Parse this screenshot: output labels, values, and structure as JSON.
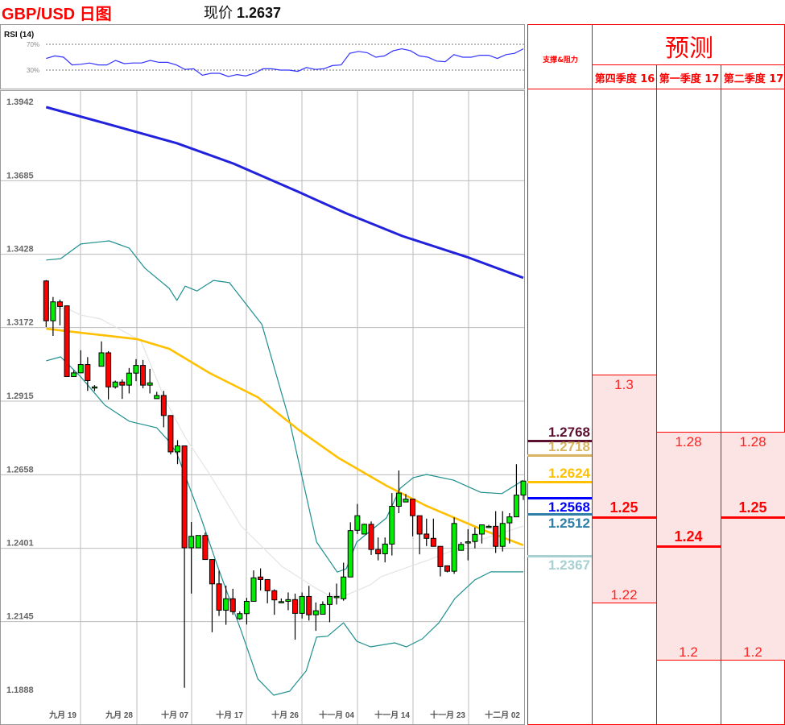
{
  "header": {
    "title": "GBP/USD 日图",
    "price_label": "现价",
    "price_value": "1.2637"
  },
  "colors": {
    "bull": "#00ee00",
    "bear": "#ff0000",
    "ma_long": "#2222dd",
    "ma_short": "#ffc000",
    "bollinger": "#1f8f8f",
    "bollinger_mid": "#e4e4e4",
    "rsi": "#3333ff",
    "panel_border": "#ff0000",
    "forecast_fill": "#fde4e4"
  },
  "rsi": {
    "label": "RSI (14)",
    "level_high": "70%",
    "level_low": "30%",
    "values": [
      48,
      52,
      50,
      38,
      39,
      41,
      38,
      38,
      45,
      40,
      41,
      41,
      45,
      42,
      42,
      38,
      31,
      32,
      22,
      25,
      25,
      20,
      23,
      21,
      25,
      32,
      32,
      30,
      30,
      28,
      34,
      31,
      32,
      37,
      38,
      56,
      59,
      57,
      50,
      52,
      60,
      63,
      60,
      52,
      50,
      44,
      43,
      54,
      50,
      50,
      53,
      53,
      48,
      54,
      56,
      63
    ]
  },
  "chart_data": {
    "type": "candlestick",
    "title": "GBP/USD 日图",
    "y_ticks": [
      "1.3942",
      "1.3685",
      "1.3428",
      "1.3172",
      "1.2915",
      "1.2658",
      "1.2401",
      "1.2145",
      "1.1888"
    ],
    "ylim": [
      1.1888,
      1.3942
    ],
    "x_tick_labels": [
      "九月 19",
      "九月 28",
      "十月 07",
      "十月 17",
      "十月 26",
      "十一月 04",
      "十一月 14",
      "十一月 23",
      "十二月 02"
    ],
    "grid": true,
    "ohlc": [
      [
        1.3318,
        1.3321,
        1.3157,
        1.3179
      ],
      [
        1.3179,
        1.3262,
        1.3126,
        1.3245
      ],
      [
        1.3245,
        1.3253,
        1.3163,
        1.3229
      ],
      [
        1.3231,
        1.3231,
        1.2984,
        1.2984
      ],
      [
        1.2984,
        1.3006,
        1.2984,
        1.2997
      ],
      [
        1.2997,
        1.3076,
        1.2997,
        1.3026
      ],
      [
        1.3026,
        1.3052,
        1.2934,
        1.297
      ],
      [
        1.2948,
        1.2954,
        1.2933,
        1.2948
      ],
      [
        1.302,
        1.3107,
        1.302,
        1.3067
      ],
      [
        1.3067,
        1.3073,
        1.2904,
        1.2948
      ],
      [
        1.2948,
        1.297,
        1.2942,
        1.2965
      ],
      [
        1.2965,
        1.2974,
        1.2906,
        1.2954
      ],
      [
        1.2954,
        1.3014,
        1.2925,
        1.2996
      ],
      [
        1.2996,
        1.3045,
        1.2968,
        1.3023
      ],
      [
        1.3023,
        1.3042,
        1.2943,
        1.2954
      ],
      [
        1.2954,
        1.3011,
        1.2925,
        1.2962
      ],
      [
        1.2907,
        1.2931,
        1.2907,
        1.2918
      ],
      [
        1.2918,
        1.2934,
        1.2807,
        1.2848
      ],
      [
        1.2848,
        1.2848,
        1.2712,
        1.2721
      ],
      [
        1.2721,
        1.2762,
        1.2678,
        1.2742
      ],
      [
        1.2742,
        1.2742,
        1.1897,
        1.2386
      ],
      [
        1.2386,
        1.2476,
        1.2226,
        1.2426
      ],
      [
        1.2386,
        1.2429,
        1.2386,
        1.2429
      ],
      [
        1.2429,
        1.2439,
        1.2345,
        1.2345
      ],
      [
        1.2345,
        1.2345,
        1.2091,
        1.226
      ],
      [
        1.226,
        1.2306,
        1.2148,
        1.2168
      ],
      [
        1.2168,
        1.2254,
        1.2117,
        1.2208
      ],
      [
        1.2208,
        1.2243,
        1.2152,
        1.2163
      ],
      [
        1.2138,
        1.2164,
        1.2134,
        1.2156
      ],
      [
        1.2156,
        1.2211,
        1.2118,
        1.2199
      ],
      [
        1.2199,
        1.2307,
        1.2199,
        1.2281
      ],
      [
        1.2284,
        1.2314,
        1.2237,
        1.2275
      ],
      [
        1.2275,
        1.2275,
        1.2192,
        1.2236
      ],
      [
        1.2236,
        1.2241,
        1.2152,
        1.2204
      ],
      [
        1.2198,
        1.2209,
        1.2195,
        1.2198
      ],
      [
        1.2199,
        1.223,
        1.2168,
        1.2205
      ],
      [
        1.2205,
        1.2226,
        1.2065,
        1.2157
      ],
      [
        1.2157,
        1.223,
        1.2139,
        1.2216
      ],
      [
        1.2216,
        1.2253,
        1.2132,
        1.2152
      ],
      [
        1.2152,
        1.2195,
        1.2096,
        1.2166
      ],
      [
        1.2154,
        1.2199,
        1.2154,
        1.2188
      ],
      [
        1.2188,
        1.223,
        1.2126,
        1.2216
      ],
      [
        1.2216,
        1.2261,
        1.2188,
        1.2216
      ],
      [
        1.2208,
        1.2334,
        1.2201,
        1.2284
      ],
      [
        1.2284,
        1.2475,
        1.2284,
        1.2446
      ],
      [
        1.2447,
        1.2539,
        1.2434,
        1.2498
      ],
      [
        1.2434,
        1.247,
        1.2434,
        1.2468
      ],
      [
        1.2468,
        1.2478,
        1.2361,
        1.238
      ],
      [
        1.238,
        1.2422,
        1.2342,
        1.2365
      ],
      [
        1.2365,
        1.2422,
        1.2335,
        1.2399
      ],
      [
        1.2399,
        1.2577,
        1.2359,
        1.2531
      ],
      [
        1.2531,
        1.2656,
        1.2507,
        1.2577
      ],
      [
        1.2546,
        1.2574,
        1.2546,
        1.2556
      ],
      [
        1.2556,
        1.2556,
        1.2426,
        1.2498
      ],
      [
        1.2498,
        1.2498,
        1.2363,
        1.2434
      ],
      [
        1.2434,
        1.2488,
        1.2392,
        1.2419
      ],
      [
        1.2419,
        1.2488,
        1.239,
        1.2391
      ],
      [
        1.2391,
        1.2391,
        1.2286,
        1.232
      ],
      [
        1.2323,
        1.2323,
        1.23,
        1.2304
      ],
      [
        1.2304,
        1.2492,
        1.2295,
        1.2471
      ],
      [
        1.2377,
        1.2406,
        1.2377,
        1.2398
      ],
      [
        1.2407,
        1.2451,
        1.2342,
        1.2407
      ],
      [
        1.2408,
        1.2457,
        1.2384,
        1.2433
      ],
      [
        1.2434,
        1.2466,
        1.2401,
        1.2466
      ],
      [
        1.2461,
        1.2466,
        1.2455,
        1.2461
      ],
      [
        1.2461,
        1.2514,
        1.2368,
        1.2391
      ],
      [
        1.2391,
        1.2514,
        1.2373,
        1.2471
      ],
      [
        1.2473,
        1.2507,
        1.2401,
        1.2494
      ],
      [
        1.2494,
        1.2678,
        1.2494,
        1.257
      ],
      [
        1.257,
        1.2619,
        1.2553,
        1.2619
      ]
    ],
    "indicators": {
      "ma_long": [
        [
          0,
          1.3925
        ],
        [
          8.5,
          1.3869
        ],
        [
          18.9,
          1.3799
        ],
        [
          27.1,
          1.3728
        ],
        [
          36.4,
          1.363
        ],
        [
          43.4,
          1.3554
        ],
        [
          51.5,
          1.3475
        ],
        [
          60.8,
          1.3402
        ],
        [
          69,
          1.3329
        ]
      ],
      "ma_short": [
        [
          0,
          1.3151
        ],
        [
          5,
          1.3137
        ],
        [
          13.1,
          1.3115
        ],
        [
          17.8,
          1.3081
        ],
        [
          23.6,
          1.2997
        ],
        [
          30.6,
          1.2912
        ],
        [
          36.4,
          1.28
        ],
        [
          42.2,
          1.2701
        ],
        [
          49.2,
          1.2603
        ],
        [
          55,
          1.2532
        ],
        [
          63.2,
          1.2448
        ],
        [
          69,
          1.2395
        ]
      ],
      "bollinger_upper": [
        [
          0,
          1.3391
        ],
        [
          2.1,
          1.3396
        ],
        [
          5,
          1.3447
        ],
        [
          9.1,
          1.3458
        ],
        [
          12,
          1.3433
        ],
        [
          14.3,
          1.3362
        ],
        [
          17.8,
          1.3292
        ],
        [
          18.9,
          1.325
        ],
        [
          20.1,
          1.33
        ],
        [
          21.8,
          1.3283
        ],
        [
          24.2,
          1.332
        ],
        [
          26.5,
          1.3312
        ],
        [
          31.2,
          1.3166
        ],
        [
          35.2,
          1.2828
        ],
        [
          39.1,
          1.2406
        ],
        [
          42.1,
          1.2301
        ],
        [
          43.4,
          1.2313
        ],
        [
          44.9,
          1.2406
        ],
        [
          49.2,
          1.249
        ],
        [
          51.2,
          1.2594
        ],
        [
          53.1,
          1.2631
        ],
        [
          55,
          1.2642
        ],
        [
          58.9,
          1.2622
        ],
        [
          62.8,
          1.258
        ],
        [
          65.9,
          1.2575
        ],
        [
          69,
          1.2622
        ]
      ],
      "bollinger_mid": [
        [
          0,
          1.3222
        ],
        [
          3,
          1.3222
        ],
        [
          5,
          1.3199
        ],
        [
          7.9,
          1.3185
        ],
        [
          13.7,
          1.3109
        ],
        [
          17.2,
          1.2904
        ],
        [
          20.1,
          1.2772
        ],
        [
          23.6,
          1.2645
        ],
        [
          28.2,
          1.2462
        ],
        [
          34.1,
          1.2321
        ],
        [
          39.1,
          1.2243
        ],
        [
          40.7,
          1.2223
        ],
        [
          43,
          1.2217
        ],
        [
          46.9,
          1.2257
        ],
        [
          48.4,
          1.2285
        ],
        [
          55,
          1.2341
        ],
        [
          62.8,
          1.2414
        ],
        [
          69,
          1.2462
        ]
      ],
      "bollinger_lower": [
        [
          0,
          1.3039
        ],
        [
          2.1,
          1.3053
        ],
        [
          5,
          1.2983
        ],
        [
          8.5,
          1.2884
        ],
        [
          12,
          1.2828
        ],
        [
          16,
          1.2805
        ],
        [
          17.8,
          1.2757
        ],
        [
          18.9,
          1.2715
        ],
        [
          22.4,
          1.249
        ],
        [
          24.8,
          1.2321
        ],
        [
          28.2,
          1.2096
        ],
        [
          30.6,
          1.1928
        ],
        [
          32.9,
          1.1871
        ],
        [
          35.2,
          1.1885
        ],
        [
          37.6,
          1.1956
        ],
        [
          39.1,
          1.2074
        ],
        [
          40.7,
          1.2077
        ],
        [
          43,
          1.2124
        ],
        [
          44.9,
          1.206
        ],
        [
          46.9,
          1.204
        ],
        [
          50.4,
          1.2054
        ],
        [
          52.1,
          1.204
        ],
        [
          54.4,
          1.2068
        ],
        [
          56.8,
          1.2124
        ],
        [
          59.1,
          1.2209
        ],
        [
          62,
          1.2274
        ],
        [
          64.3,
          1.2302
        ],
        [
          69,
          1.2302
        ]
      ]
    }
  },
  "panel": {
    "sr_header": "支撑&阻力",
    "forecast_header": "预测",
    "levels": [
      {
        "value": "1.2768",
        "price": 1.2768,
        "color": "#5c0f2e",
        "label_pos": "above"
      },
      {
        "value": "1.2718",
        "price": 1.2718,
        "color": "#d8b460",
        "label_pos": "above"
      },
      {
        "value": "1.2624",
        "price": 1.2624,
        "color": "#ffc000",
        "label_pos": "above"
      },
      {
        "value": "1.2568",
        "price": 1.2568,
        "color": "#0000ff",
        "label_pos": "below"
      },
      {
        "value": "1.2512",
        "price": 1.2512,
        "color": "#2e7ea6",
        "label_pos": "below"
      },
      {
        "value": "1.2367",
        "price": 1.2367,
        "color": "#a8d0d0",
        "label_pos": "below"
      }
    ],
    "forecasts": [
      {
        "quarter": "第四季度 16",
        "high": "1.3",
        "mid": "1.25",
        "low": "1.22"
      },
      {
        "quarter": "第一季度 17",
        "high": "1.28",
        "mid": "1.24",
        "low": "1.2"
      },
      {
        "quarter": "第二季度 17",
        "high": "1.28",
        "mid": "1.25",
        "low": "1.2"
      }
    ]
  }
}
